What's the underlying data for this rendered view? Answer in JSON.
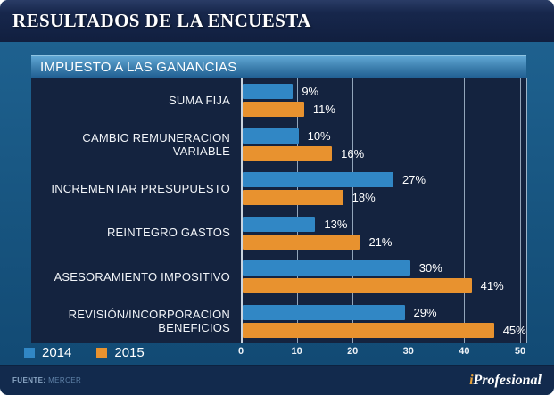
{
  "header": {
    "title": "RESULTADOS DE LA ENCUESTA"
  },
  "chart_data": {
    "type": "bar",
    "orientation": "horizontal",
    "title": "IMPUESTO A LAS GANANCIAS",
    "categories": [
      "SUMA FIJA",
      "CAMBIO REMUNERACION VARIABLE",
      "INCREMENTAR PRESUPUESTO",
      "REINTEGRO GASTOS",
      "ASESORAMIENTO IMPOSITIVO",
      "REVISIÓN/INCORPORACION BENEFICIOS"
    ],
    "series": [
      {
        "name": "2014",
        "color": "#3187c5",
        "values": [
          9,
          10,
          27,
          13,
          30,
          29
        ]
      },
      {
        "name": "2015",
        "color": "#e8922f",
        "values": [
          11,
          16,
          18,
          21,
          41,
          45
        ]
      }
    ],
    "value_suffix": "%",
    "xlabel": "",
    "ylabel": "",
    "xlim": [
      0,
      50
    ],
    "x_ticks": [
      0,
      10,
      20,
      30,
      40,
      50
    ],
    "grid": true,
    "legend_position": "bottom-left",
    "plot_background": "#14233f",
    "gridline_color": "#92a5ba"
  },
  "footer": {
    "source_label": "FUENTE:",
    "source_value": "MERCER",
    "brand": {
      "prefix": "i",
      "rest": "Profesional"
    }
  }
}
